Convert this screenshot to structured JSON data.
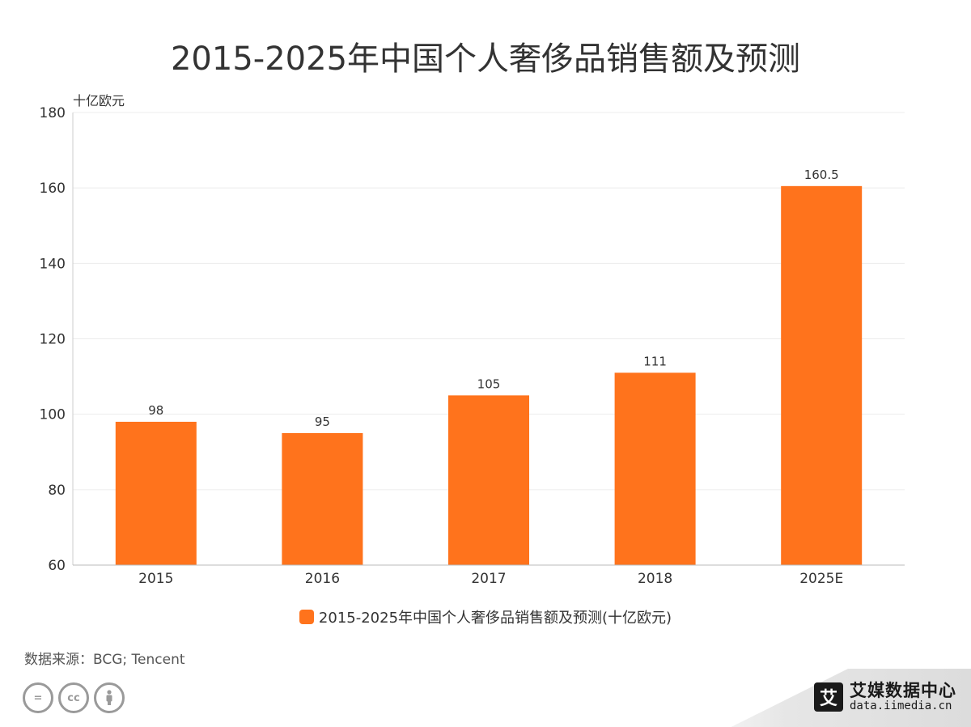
{
  "chart_data": {
    "type": "bar",
    "title": "2015-2025年中国个人奢侈品销售额及预测",
    "unit_label": "十亿欧元",
    "categories": [
      "2015",
      "2016",
      "2017",
      "2018",
      "2025E"
    ],
    "series": [
      {
        "name": "2015-2025年中国个人奢侈品销售额及预测(十亿欧元)",
        "values": [
          98,
          95,
          105,
          111,
          160.5
        ],
        "labels": [
          "98",
          "95",
          "105",
          "111",
          "160.5"
        ],
        "color": "#ff731c"
      }
    ],
    "ylim": [
      60,
      180
    ],
    "yticks": [
      60,
      80,
      100,
      120,
      140,
      160,
      180
    ],
    "grid": true,
    "legend_position": "bottom"
  },
  "source": "数据来源：BCG; Tencent",
  "license_icons": [
    "cc-equals-icon",
    "cc-icon",
    "cc-attribution-icon"
  ],
  "brand": {
    "logo_char": "艾",
    "name": "艾媒数据中心",
    "url": "data.iimedia.cn"
  }
}
